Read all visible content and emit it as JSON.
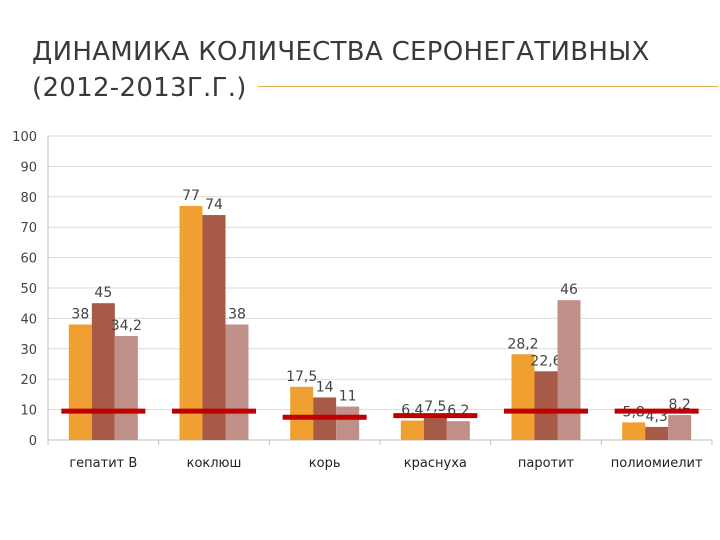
{
  "slide": {
    "title": "ДИНАМИКА КОЛИЧЕСТВА СЕРОНЕГАТИВНЫХ (2012-2013Г.Г.)"
  },
  "colors": {
    "series": [
      "#f0a030",
      "#a85a48",
      "#c09088"
    ],
    "threshold": "#c00000",
    "grid": "#d9d9d9",
    "accent": "#e2ad55"
  },
  "chart_data": {
    "type": "bar",
    "categories": [
      "гепатит В",
      "коклюш",
      "корь",
      "краснуха",
      "паротит",
      "полиомиелит"
    ],
    "series": [
      {
        "values": [
          38,
          77,
          17.5,
          6.4,
          28.2,
          5.8
        ],
        "labels": [
          "38",
          "77",
          "17,5",
          "6,4",
          "28,2",
          "5,8"
        ]
      },
      {
        "values": [
          45,
          74,
          14,
          7.5,
          22.6,
          4.3
        ],
        "labels": [
          "45",
          "74",
          "14",
          "7,5",
          "22,6",
          "4,3"
        ]
      },
      {
        "values": [
          34.2,
          38,
          11,
          6.2,
          46,
          8.2
        ],
        "labels": [
          "34,2",
          "38",
          "11",
          "6,2",
          "46",
          "8,2"
        ]
      }
    ],
    "threshold_lines": [
      9.5,
      9.5,
      7.5,
      8,
      9.5,
      9.5
    ],
    "yticks": [
      "0",
      "10",
      "20",
      "30",
      "40",
      "50",
      "60",
      "70",
      "80",
      "90",
      "100"
    ],
    "ylim": [
      0,
      100
    ],
    "grid": true,
    "legend": "none",
    "title": "",
    "xlabel": "",
    "ylabel": ""
  }
}
